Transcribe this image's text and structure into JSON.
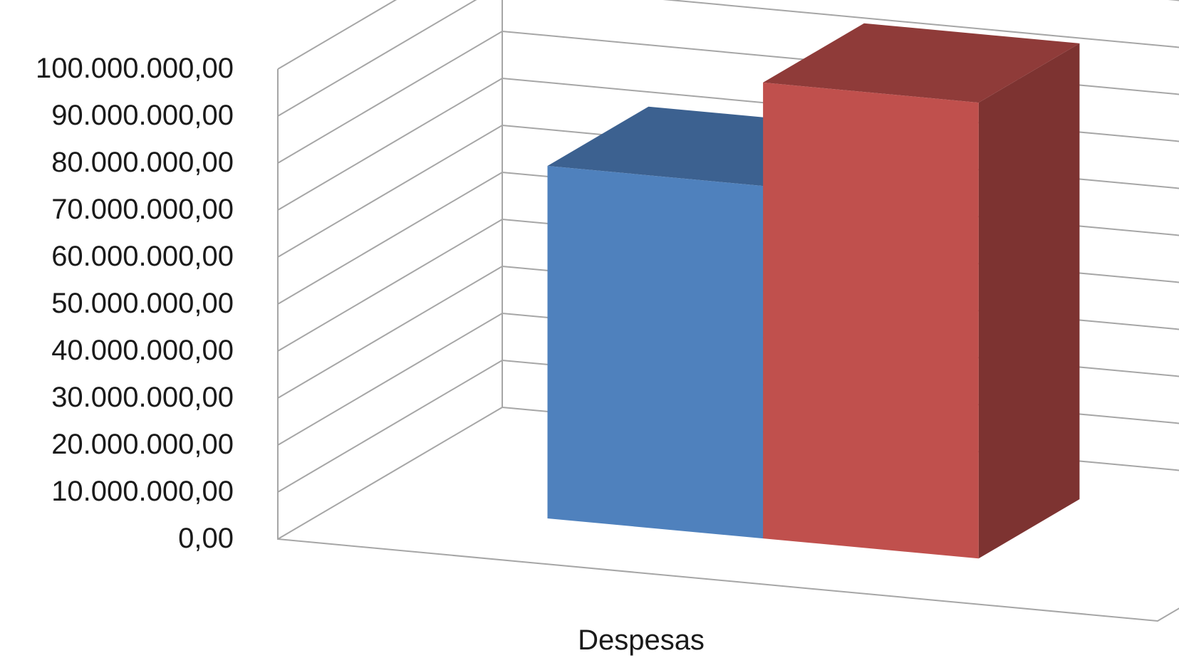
{
  "chart_data": {
    "type": "bar",
    "style": "3d-clustered-column",
    "categories": [
      "Despesas"
    ],
    "series": [
      {
        "values": [
          75000000
        ],
        "color": "#4f81bd",
        "top_color": "#3c6190",
        "side_color": "#365782"
      },
      {
        "values": [
          97000000
        ],
        "color": "#c0504d",
        "top_color": "#8f3b39",
        "side_color": "#7d3331"
      }
    ],
    "ylim": [
      0,
      100000000
    ],
    "y_ticks": [
      0,
      10000000,
      20000000,
      30000000,
      40000000,
      50000000,
      60000000,
      70000000,
      80000000,
      90000000,
      100000000
    ],
    "y_tick_labels": [
      "0,00",
      "10.000.000,00",
      "20.000.000,00",
      "30.000.000,00",
      "40.000.000,00",
      "50.000.000,00",
      "60.000.000,00",
      "70.000.000,00",
      "80.000.000,00",
      "90.000.000,00",
      "100.000.000,00"
    ],
    "category_labels": [
      "Despesas"
    ],
    "grid": true,
    "gridline_color": "#a6a6a6",
    "legend": "none"
  }
}
